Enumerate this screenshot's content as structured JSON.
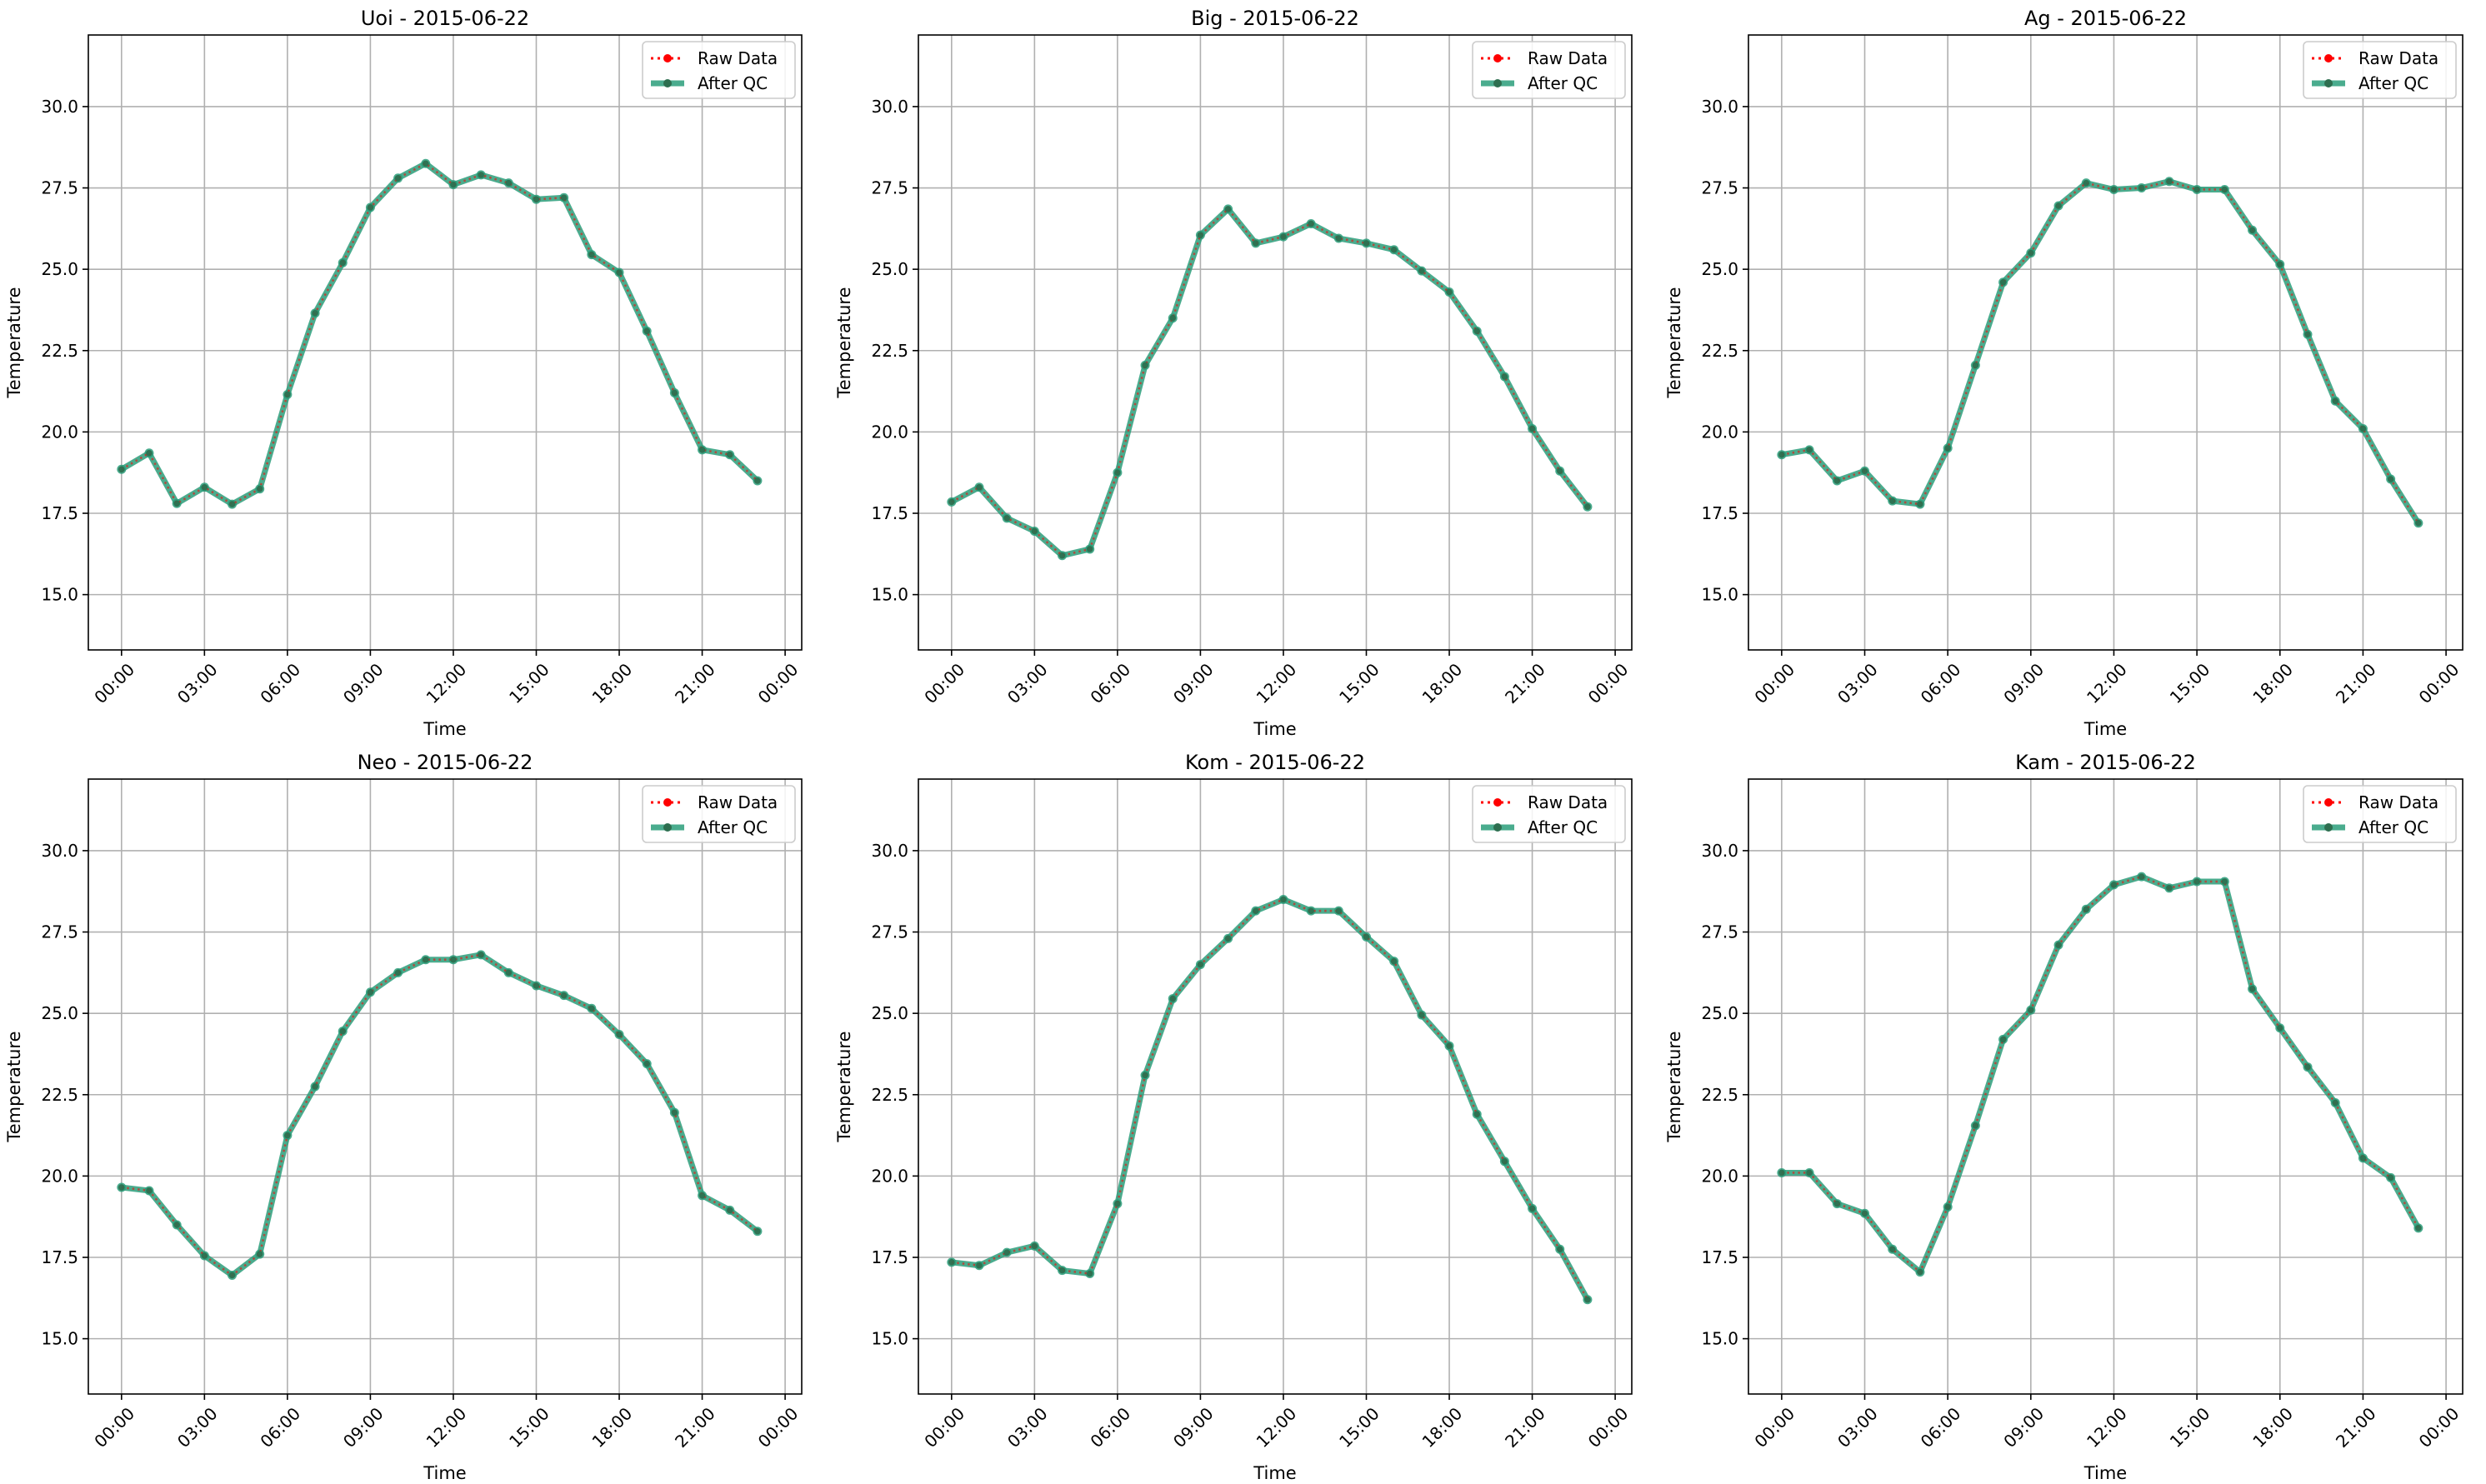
{
  "figure": {
    "date": "2015-06-22"
  },
  "chart_data": [
    {
      "type": "line",
      "title": "Uoi - 2015-06-22",
      "xlabel": "Time",
      "ylabel": "Temperature",
      "x_unit": "hour of day",
      "x_ticks": [
        "00:00",
        "03:00",
        "06:00",
        "09:00",
        "12:00",
        "15:00",
        "18:00",
        "21:00",
        "00:00"
      ],
      "x": [
        0,
        1,
        2,
        3,
        4,
        5,
        6,
        7,
        8,
        9,
        10,
        11,
        12,
        13,
        14,
        15,
        16,
        17,
        18,
        19,
        20,
        21,
        22,
        23
      ],
      "xlim": [
        -1.2,
        24.6
      ],
      "yticks": [
        "15.0",
        "17.5",
        "20.0",
        "22.5",
        "25.0",
        "27.5",
        "30.0"
      ],
      "ylim": [
        13.3,
        32.2
      ],
      "legend": "upper right",
      "grid": true,
      "series": [
        {
          "name": "Raw Data",
          "color": "#ff0000",
          "style": "dotted",
          "values": [
            18.85,
            19.35,
            17.8,
            18.3,
            17.78,
            18.25,
            21.15,
            23.65,
            25.2,
            26.9,
            27.8,
            28.25,
            27.6,
            27.9,
            27.65,
            27.15,
            27.2,
            25.45,
            24.9,
            23.1,
            21.2,
            19.45,
            19.3,
            18.5
          ]
        },
        {
          "name": "After QC",
          "color": "#2a9d7a",
          "style": "solid",
          "values": [
            18.85,
            19.35,
            17.8,
            18.3,
            17.78,
            18.25,
            21.15,
            23.65,
            25.2,
            26.9,
            27.8,
            28.25,
            27.6,
            27.9,
            27.65,
            27.15,
            27.2,
            25.45,
            24.9,
            23.1,
            21.2,
            19.45,
            19.3,
            18.5
          ]
        }
      ]
    },
    {
      "type": "line",
      "title": "Big - 2015-06-22",
      "xlabel": "Time",
      "ylabel": "Temperature",
      "x_unit": "hour of day",
      "x_ticks": [
        "00:00",
        "03:00",
        "06:00",
        "09:00",
        "12:00",
        "15:00",
        "18:00",
        "21:00",
        "00:00"
      ],
      "x": [
        0,
        1,
        2,
        3,
        4,
        5,
        6,
        7,
        8,
        9,
        10,
        11,
        12,
        13,
        14,
        15,
        16,
        17,
        18,
        19,
        20,
        21,
        22,
        23
      ],
      "xlim": [
        -1.2,
        24.6
      ],
      "yticks": [
        "15.0",
        "17.5",
        "20.0",
        "22.5",
        "25.0",
        "27.5",
        "30.0"
      ],
      "ylim": [
        13.3,
        32.2
      ],
      "legend": "upper right",
      "grid": true,
      "series": [
        {
          "name": "Raw Data",
          "color": "#ff0000",
          "style": "dotted",
          "values": [
            17.85,
            18.3,
            17.35,
            16.95,
            16.2,
            16.4,
            18.75,
            22.05,
            23.5,
            26.05,
            26.85,
            25.8,
            26.0,
            26.4,
            25.95,
            25.8,
            25.6,
            24.95,
            24.3,
            23.1,
            21.7,
            20.1,
            18.8,
            17.7
          ]
        },
        {
          "name": "After QC",
          "color": "#2a9d7a",
          "style": "solid",
          "values": [
            17.85,
            18.3,
            17.35,
            16.95,
            16.2,
            16.4,
            18.75,
            22.05,
            23.5,
            26.05,
            26.85,
            25.8,
            26.0,
            26.4,
            25.95,
            25.8,
            25.6,
            24.95,
            24.3,
            23.1,
            21.7,
            20.1,
            18.8,
            17.7
          ]
        }
      ]
    },
    {
      "type": "line",
      "title": "Ag - 2015-06-22",
      "xlabel": "Time",
      "ylabel": "Temperature",
      "x_unit": "hour of day",
      "x_ticks": [
        "00:00",
        "03:00",
        "06:00",
        "09:00",
        "12:00",
        "15:00",
        "18:00",
        "21:00",
        "00:00"
      ],
      "x": [
        0,
        1,
        2,
        3,
        4,
        5,
        6,
        7,
        8,
        9,
        10,
        11,
        12,
        13,
        14,
        15,
        16,
        17,
        18,
        19,
        20,
        21,
        22,
        23
      ],
      "xlim": [
        -1.2,
        24.6
      ],
      "yticks": [
        "15.0",
        "17.5",
        "20.0",
        "22.5",
        "25.0",
        "27.5",
        "30.0"
      ],
      "ylim": [
        13.3,
        32.2
      ],
      "legend": "upper right",
      "grid": true,
      "series": [
        {
          "name": "Raw Data",
          "color": "#ff0000",
          "style": "dotted",
          "values": [
            19.3,
            19.45,
            18.5,
            18.8,
            17.88,
            17.78,
            19.5,
            22.05,
            24.6,
            25.5,
            26.95,
            27.65,
            27.45,
            27.5,
            27.7,
            27.45,
            27.45,
            26.2,
            25.15,
            23.0,
            20.95,
            20.1,
            18.55,
            17.2
          ]
        },
        {
          "name": "After QC",
          "color": "#2a9d7a",
          "style": "solid",
          "values": [
            19.3,
            19.45,
            18.5,
            18.8,
            17.88,
            17.78,
            19.5,
            22.05,
            24.6,
            25.5,
            26.95,
            27.65,
            27.45,
            27.5,
            27.7,
            27.45,
            27.45,
            26.2,
            25.15,
            23.0,
            20.95,
            20.1,
            18.55,
            17.2
          ]
        }
      ]
    },
    {
      "type": "line",
      "title": "Neo - 2015-06-22",
      "xlabel": "Time",
      "ylabel": "Temperature",
      "x_unit": "hour of day",
      "x_ticks": [
        "00:00",
        "03:00",
        "06:00",
        "09:00",
        "12:00",
        "15:00",
        "18:00",
        "21:00",
        "00:00"
      ],
      "x": [
        0,
        1,
        2,
        3,
        4,
        5,
        6,
        7,
        8,
        9,
        10,
        11,
        12,
        13,
        14,
        15,
        16,
        17,
        18,
        19,
        20,
        21,
        22,
        23
      ],
      "xlim": [
        -1.2,
        24.6
      ],
      "yticks": [
        "15.0",
        "17.5",
        "20.0",
        "22.5",
        "25.0",
        "27.5",
        "30.0"
      ],
      "ylim": [
        13.3,
        32.2
      ],
      "legend": "upper right",
      "grid": true,
      "series": [
        {
          "name": "Raw Data",
          "color": "#ff0000",
          "style": "dotted",
          "values": [
            19.65,
            19.55,
            18.5,
            17.55,
            16.95,
            17.6,
            21.25,
            22.75,
            24.45,
            25.65,
            26.25,
            26.65,
            26.65,
            26.8,
            26.25,
            25.85,
            25.55,
            25.15,
            24.35,
            23.45,
            21.95,
            19.4,
            18.95,
            18.3
          ]
        },
        {
          "name": "After QC",
          "color": "#2a9d7a",
          "style": "solid",
          "values": [
            19.65,
            19.55,
            18.5,
            17.55,
            16.95,
            17.6,
            21.25,
            22.75,
            24.45,
            25.65,
            26.25,
            26.65,
            26.65,
            26.8,
            26.25,
            25.85,
            25.55,
            25.15,
            24.35,
            23.45,
            21.95,
            19.4,
            18.95,
            18.3
          ]
        }
      ]
    },
    {
      "type": "line",
      "title": "Kom - 2015-06-22",
      "xlabel": "Time",
      "ylabel": "Temperature",
      "x_unit": "hour of day",
      "x_ticks": [
        "00:00",
        "03:00",
        "06:00",
        "09:00",
        "12:00",
        "15:00",
        "18:00",
        "21:00",
        "00:00"
      ],
      "x": [
        0,
        1,
        2,
        3,
        4,
        5,
        6,
        7,
        8,
        9,
        10,
        11,
        12,
        13,
        14,
        15,
        16,
        17,
        18,
        19,
        20,
        21,
        22,
        23
      ],
      "xlim": [
        -1.2,
        24.6
      ],
      "yticks": [
        "15.0",
        "17.5",
        "20.0",
        "22.5",
        "25.0",
        "27.5",
        "30.0"
      ],
      "ylim": [
        13.3,
        32.2
      ],
      "legend": "upper right",
      "grid": true,
      "series": [
        {
          "name": "Raw Data",
          "color": "#ff0000",
          "style": "dotted",
          "values": [
            17.35,
            17.25,
            17.65,
            17.85,
            17.1,
            17.0,
            19.15,
            23.1,
            25.45,
            26.5,
            27.3,
            28.15,
            28.5,
            28.15,
            28.15,
            27.35,
            26.6,
            24.95,
            24.0,
            21.9,
            20.45,
            19.0,
            17.75,
            16.2
          ]
        },
        {
          "name": "After QC",
          "color": "#2a9d7a",
          "style": "solid",
          "values": [
            17.35,
            17.25,
            17.65,
            17.85,
            17.1,
            17.0,
            19.15,
            23.1,
            25.45,
            26.5,
            27.3,
            28.15,
            28.5,
            28.15,
            28.15,
            27.35,
            26.6,
            24.95,
            24.0,
            21.9,
            20.45,
            19.0,
            17.75,
            16.2
          ]
        }
      ]
    },
    {
      "type": "line",
      "title": "Kam - 2015-06-22",
      "xlabel": "Time",
      "ylabel": "Temperature",
      "x_unit": "hour of day",
      "x_ticks": [
        "00:00",
        "03:00",
        "06:00",
        "09:00",
        "12:00",
        "15:00",
        "18:00",
        "21:00",
        "00:00"
      ],
      "x": [
        0,
        1,
        2,
        3,
        4,
        5,
        6,
        7,
        8,
        9,
        10,
        11,
        12,
        13,
        14,
        15,
        16,
        17,
        18,
        19,
        20,
        21,
        22,
        23
      ],
      "xlim": [
        -1.2,
        24.6
      ],
      "yticks": [
        "15.0",
        "17.5",
        "20.0",
        "22.5",
        "25.0",
        "27.5",
        "30.0"
      ],
      "ylim": [
        13.3,
        32.2
      ],
      "legend": "upper right",
      "grid": true,
      "series": [
        {
          "name": "Raw Data",
          "color": "#ff0000",
          "style": "dotted",
          "values": [
            20.1,
            20.1,
            19.15,
            18.85,
            17.75,
            17.05,
            19.05,
            21.55,
            24.2,
            25.1,
            27.1,
            28.2,
            28.95,
            29.2,
            28.85,
            29.05,
            29.05,
            25.75,
            24.55,
            23.35,
            22.25,
            20.55,
            19.95,
            18.4
          ]
        },
        {
          "name": "After QC",
          "color": "#2a9d7a",
          "style": "solid",
          "values": [
            20.1,
            20.1,
            19.15,
            18.85,
            17.75,
            17.05,
            19.05,
            21.55,
            24.2,
            25.1,
            27.1,
            28.2,
            28.95,
            29.2,
            28.85,
            29.05,
            29.05,
            25.75,
            24.55,
            23.35,
            22.25,
            20.55,
            19.95,
            18.4
          ]
        }
      ]
    }
  ]
}
